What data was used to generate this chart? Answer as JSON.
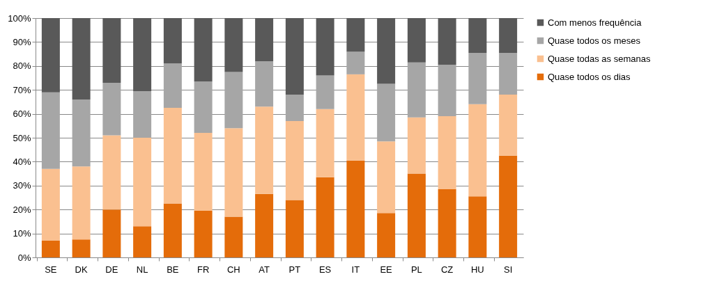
{
  "chart_data": {
    "type": "bar",
    "stacked": true,
    "categories": [
      "SE",
      "DK",
      "DE",
      "NL",
      "BE",
      "FR",
      "CH",
      "AT",
      "PT",
      "ES",
      "IT",
      "EE",
      "PL",
      "CZ",
      "HU",
      "SI"
    ],
    "series": [
      {
        "name": "Quase todos os dias",
        "color": "#e46c0a",
        "values": [
          7,
          7.5,
          20,
          13,
          22.5,
          19.5,
          17,
          26.5,
          24,
          33.5,
          40.5,
          18.5,
          35,
          28.5,
          25.5,
          42.5
        ]
      },
      {
        "name": "Quase todas as semanas",
        "color": "#fac090",
        "values": [
          30,
          30.5,
          31,
          37,
          40,
          32.5,
          37,
          36.5,
          33,
          28.5,
          36,
          30,
          23.5,
          30.5,
          38.5,
          25.5
        ]
      },
      {
        "name": "Quase todos os meses",
        "color": "#a6a6a6",
        "values": [
          32,
          28,
          22,
          19.5,
          18.5,
          21.5,
          23.5,
          19,
          11,
          14,
          9.5,
          24,
          23,
          21.5,
          21.5,
          17.5
        ]
      },
      {
        "name": "Com menos frequência",
        "color": "#595959",
        "values": [
          31,
          34,
          27,
          30.5,
          19,
          26.5,
          22.5,
          18,
          32,
          24,
          14,
          27.5,
          18.5,
          19.5,
          14.5,
          14.5
        ]
      }
    ],
    "ylim": [
      0,
      100
    ],
    "yticks": [
      {
        "value": 0,
        "label": "0%"
      },
      {
        "value": 10,
        "label": "10%"
      },
      {
        "value": 20,
        "label": "20%"
      },
      {
        "value": 30,
        "label": "30%"
      },
      {
        "value": 40,
        "label": "40%"
      },
      {
        "value": 50,
        "label": "50%"
      },
      {
        "value": 60,
        "label": "60%"
      },
      {
        "value": 70,
        "label": "70%"
      },
      {
        "value": 80,
        "label": "80%"
      },
      {
        "value": 90,
        "label": "90%"
      },
      {
        "value": 100,
        "label": "100%"
      }
    ],
    "grid": "y",
    "legend": "right"
  }
}
